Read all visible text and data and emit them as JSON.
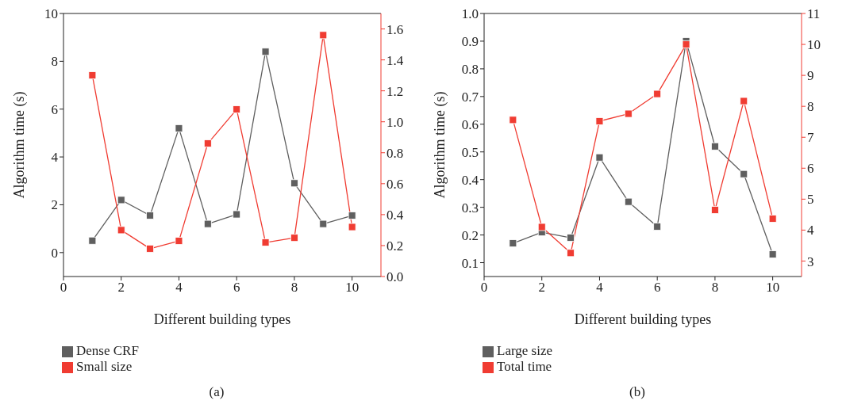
{
  "chart_data": [
    {
      "type": "line",
      "xlabel": "Different building types",
      "ylabel": "Algorithm time (s)",
      "x": [
        1,
        2,
        3,
        4,
        5,
        6,
        7,
        8,
        9,
        10
      ],
      "series": [
        {
          "name": "Dense CRF",
          "color": "#5f5f5f",
          "values": [
            0.5,
            2.2,
            1.55,
            5.2,
            1.2,
            1.6,
            8.4,
            2.9,
            1.2,
            1.55
          ]
        },
        {
          "name": "Small size",
          "color": "#f03c32",
          "axis": "y2",
          "values": [
            1.3,
            0.3,
            0.18,
            0.23,
            0.86,
            1.08,
            0.22,
            0.25,
            1.56,
            0.32
          ]
        }
      ],
      "xlim": [
        0,
        11
      ],
      "xticks": [
        0,
        2,
        4,
        6,
        8,
        10
      ],
      "ylim": [
        -1,
        10
      ],
      "yticks": [
        0,
        2,
        4,
        6,
        8,
        10
      ],
      "y2lim": [
        0,
        1.7
      ],
      "y2ticks": [
        {
          "value": 0,
          "label": "0.0"
        },
        0.2,
        0.4,
        0.6,
        0.8,
        {
          "value": 1,
          "label": "1.0"
        },
        1.2,
        1.4,
        1.6
      ],
      "marker": "square",
      "legend": "bottom",
      "annotations": [
        "(a)"
      ]
    },
    {
      "type": "line",
      "xlabel": "Different building types",
      "ylabel": "Algorithm time (s)",
      "x": [
        1,
        2,
        3,
        4,
        5,
        6,
        7,
        8,
        9,
        10
      ],
      "series": [
        {
          "name": "Large size",
          "color": "#5f5f5f",
          "values": [
            0.17,
            0.21,
            0.19,
            0.48,
            0.32,
            0.23,
            0.9,
            0.52,
            0.42,
            0.13
          ]
        },
        {
          "name": "Total time",
          "color": "#f03c32",
          "axis": "y2",
          "values": [
            7.56,
            4.1,
            3.26,
            7.52,
            7.76,
            8.4,
            10.0,
            4.65,
            8.17,
            4.37
          ]
        }
      ],
      "xlim": [
        0,
        11
      ],
      "xticks": [
        0,
        2,
        4,
        6,
        8,
        10
      ],
      "ylim": [
        0.05,
        1.0
      ],
      "yticks": [
        0.1,
        0.2,
        0.3,
        0.4,
        0.5,
        0.6,
        0.7,
        0.8,
        0.9,
        {
          "value": 1,
          "label": "1.0"
        }
      ],
      "y2lim": [
        2.5,
        11
      ],
      "y2ticks": [
        3,
        4,
        5,
        6,
        7,
        8,
        9,
        10,
        11
      ],
      "marker": "square",
      "legend": "bottom",
      "annotations": [
        "(b)"
      ]
    }
  ]
}
